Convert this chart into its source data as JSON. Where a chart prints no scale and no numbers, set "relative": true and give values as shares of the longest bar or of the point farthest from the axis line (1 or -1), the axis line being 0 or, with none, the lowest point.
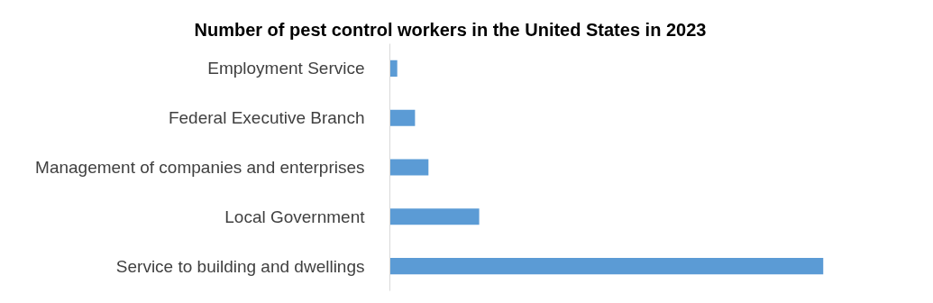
{
  "chart_data": {
    "type": "bar",
    "orientation": "horizontal",
    "relative": true,
    "title": "Number of pest control workers in the United States in 2023",
    "categories": [
      "Employment Service",
      "Federal Executive Branch",
      "Management of companies and enterprises",
      "Local Government",
      "Service to building and dwellings"
    ],
    "values": [
      0.017,
      0.058,
      0.089,
      0.206,
      1
    ],
    "color": "#5b9bd5",
    "grid": false
  }
}
